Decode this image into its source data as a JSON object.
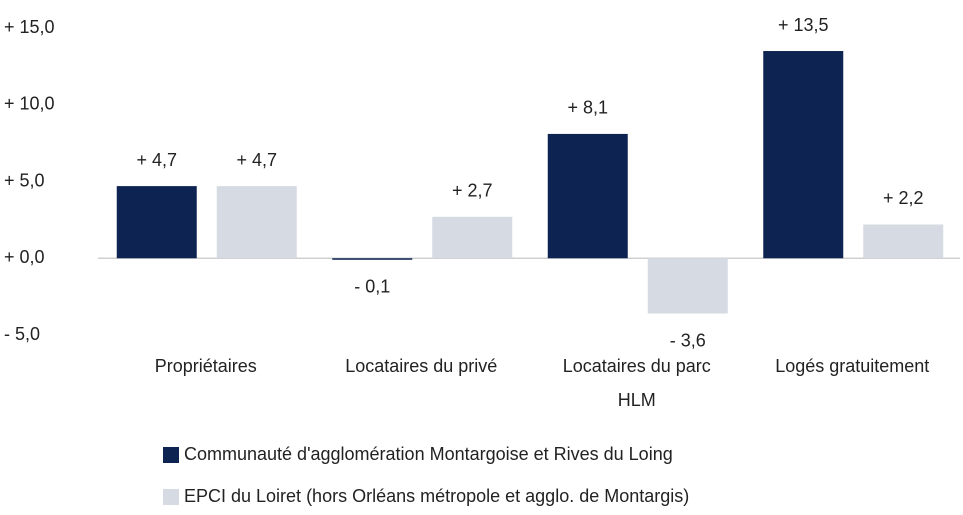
{
  "chart_data": {
    "type": "bar",
    "categories": [
      "Propriétaires",
      "Locataires du privé",
      "Locataires du parc\nHLM",
      "Logés gratuitement"
    ],
    "series": [
      {
        "name": "Communauté d'agglomération Montargoise et Rives du Loing",
        "color": "#0d2452",
        "values": [
          4.7,
          -0.1,
          8.1,
          13.5
        ],
        "value_labels": [
          "+ 4,7",
          "- 0,1",
          "+ 8,1",
          "+ 13,5"
        ]
      },
      {
        "name": "EPCI du Loiret (hors Orléans métropole et agglo. de Montargis)",
        "color": "#d6dae2",
        "values": [
          4.7,
          2.7,
          -3.6,
          2.2
        ],
        "value_labels": [
          "+ 4,7",
          "+ 2,7",
          "- 3,6",
          "+ 2,2"
        ]
      }
    ],
    "ylim": [
      -5,
      15
    ],
    "yticks": [
      {
        "value": -5,
        "label": "- 5,0"
      },
      {
        "value": 0,
        "label": "+ 0,0"
      },
      {
        "value": 5,
        "label": "+ 5,0"
      },
      {
        "value": 10,
        "label": "+ 10,0"
      },
      {
        "value": 15,
        "label": "+ 15,0"
      }
    ],
    "grid": false,
    "legend": "bottom"
  }
}
